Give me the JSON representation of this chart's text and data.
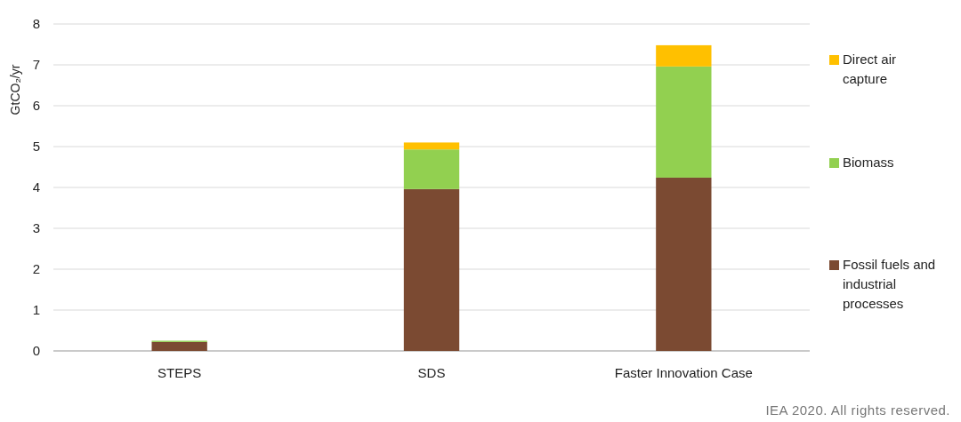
{
  "chart_data": {
    "type": "bar",
    "stacked": true,
    "ylabel": "GtCO₂/yr",
    "categories": [
      "STEPS",
      "SDS",
      "Faster Innovation Case"
    ],
    "series": [
      {
        "name": "Fossil fuels and industrial processes",
        "color": "#7b4a32",
        "values": [
          0.22,
          3.96,
          4.24
        ]
      },
      {
        "name": "Biomass",
        "color": "#92d050",
        "values": [
          0.03,
          0.97,
          2.72
        ]
      },
      {
        "name": "Direct air capture",
        "color": "#ffc000",
        "values": [
          0,
          0.17,
          0.52
        ]
      }
    ],
    "ylim": [
      0,
      8
    ],
    "yticks": [
      0,
      1,
      2,
      3,
      4,
      5,
      6,
      7,
      8
    ],
    "grid": "y",
    "legend": "right",
    "annotations": [
      "IEA 2020. All rights reserved."
    ]
  }
}
